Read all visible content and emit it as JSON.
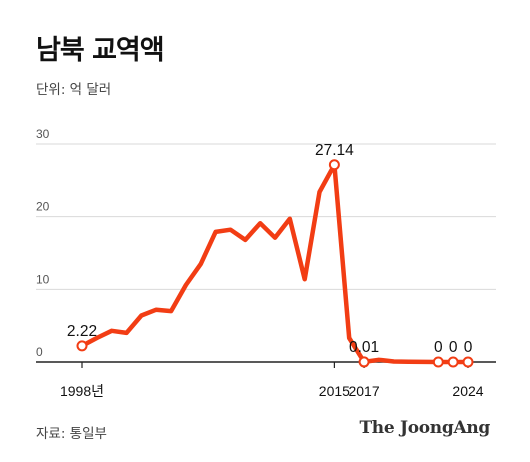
{
  "header": {
    "title": "남북 교역액",
    "unit": "단위: 억 달러"
  },
  "footer": {
    "source": "자료: 통일부",
    "brand": "The JoongAng"
  },
  "colors": {
    "line": "#f23d14",
    "grid": "#d9d9d9",
    "axis": "#222222"
  },
  "chart_data": {
    "type": "line",
    "title": "남북 교역액",
    "ylabel": "",
    "xlabel": "",
    "ylim": [
      0,
      30
    ],
    "xlim": [
      1998,
      2024
    ],
    "y_ticks": [
      "0",
      "10",
      "20",
      "30"
    ],
    "x_tick_labels": [
      {
        "x": 1998,
        "label": "1998년"
      },
      {
        "x": 2015,
        "label": "2015"
      },
      {
        "x": 2017,
        "label": "2017"
      },
      {
        "x": 2024,
        "label": "2024"
      }
    ],
    "series": [
      {
        "x": [
          1998,
          1999,
          2000,
          2001,
          2002,
          2003,
          2004,
          2005,
          2006,
          2007,
          2008,
          2009,
          2010,
          2011,
          2012,
          2013,
          2014,
          2015,
          2016,
          2017,
          2018,
          2019,
          2020,
          2021,
          2022,
          2023,
          2024
        ],
        "values": [
          2.22,
          3.3,
          4.3,
          4.0,
          6.4,
          7.2,
          7.0,
          10.6,
          13.5,
          17.9,
          18.2,
          16.8,
          19.1,
          17.1,
          19.7,
          11.4,
          23.4,
          27.14,
          3.3,
          0.01,
          0.3,
          0.07,
          0.04,
          0.01,
          0.0,
          0.0,
          0.0
        ]
      }
    ],
    "point_labels": [
      {
        "x": 1998,
        "label": "2.22"
      },
      {
        "x": 2015,
        "label": "27.14"
      },
      {
        "x": 2017,
        "label": "0.01"
      },
      {
        "x": 2022,
        "label": "0"
      },
      {
        "x": 2023,
        "label": "0"
      },
      {
        "x": 2024,
        "label": "0"
      }
    ],
    "grid": true,
    "legend": "none"
  }
}
